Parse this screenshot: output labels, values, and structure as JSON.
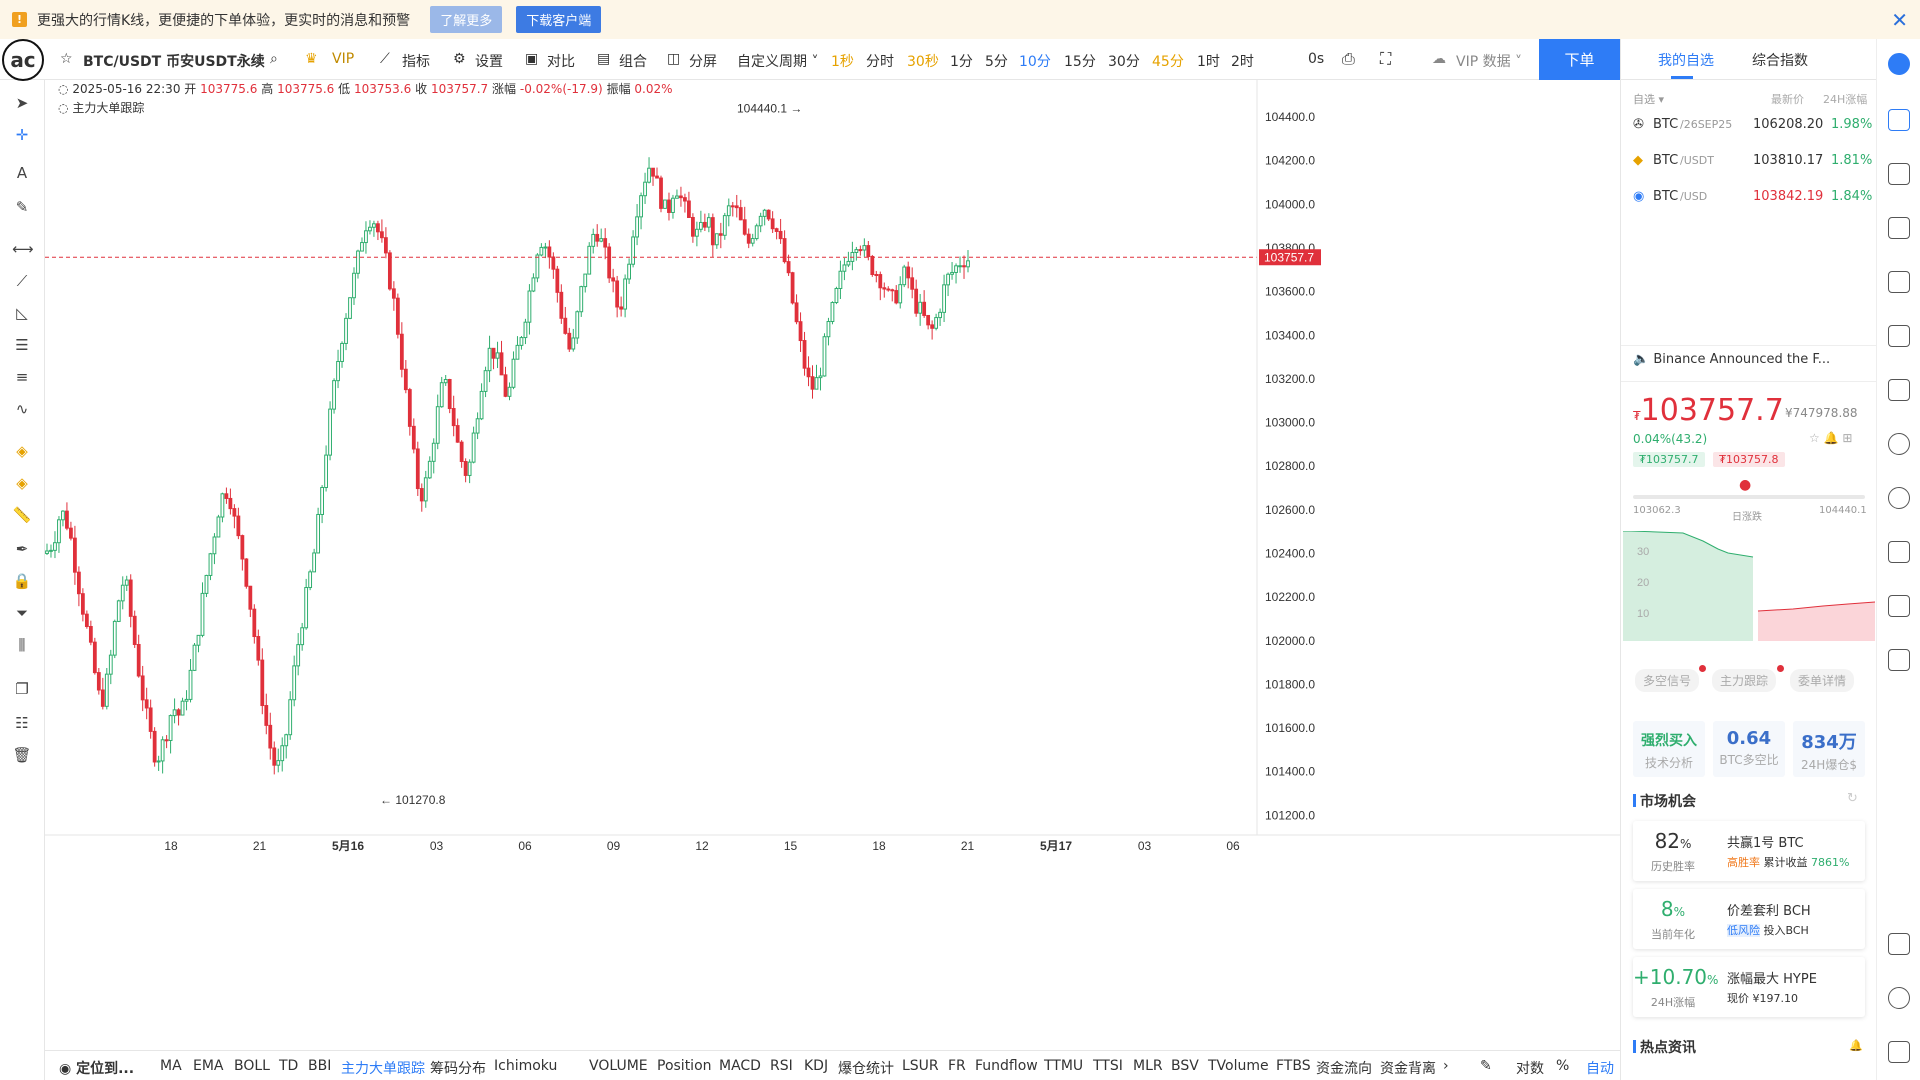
{
  "banner": {
    "message": "更强大的行情K线，更便捷的下单体验，更实时的消息和预警",
    "learn_more": "了解更多",
    "download": "下载客户端"
  },
  "toolbar": {
    "symbol": "BTC/USDT 币安USDT永续",
    "vip": "VIP",
    "indicators": "指标",
    "settings": "设置",
    "compare": "对比",
    "combine": "组合",
    "split": "分屏",
    "custom_period": "自定义周期",
    "periods": [
      "1秒",
      "分时",
      "30秒",
      "1分",
      "5分",
      "10分",
      "15分",
      "30分",
      "45分",
      "1时",
      "2时"
    ],
    "countdown": "0s",
    "vip_data": "VIP 数据",
    "order": "下单"
  },
  "ohlc": {
    "datetime": "2025-05-16 22:30",
    "open_label": "开",
    "open": "103775.6",
    "high_label": "高",
    "high": "103775.6",
    "low_label": "低",
    "low": "103753.6",
    "close_label": "收",
    "close": "103757.7",
    "change_label": "涨幅",
    "change": "-0.02%(-17.9)",
    "amp_label": "振幅",
    "amp": "0.02%",
    "tracker": "主力大单跟踪"
  },
  "chart_data": {
    "type": "candlestick",
    "y_ticks": [
      "104400.0",
      "104200.0",
      "104000.0",
      "103800.0",
      "103600.0",
      "103400.0",
      "103200.0",
      "103000.0",
      "102800.0",
      "102600.0",
      "102400.0",
      "102200.0",
      "102000.0",
      "101800.0",
      "101600.0",
      "101400.0",
      "101200.0"
    ],
    "ylim": [
      101110,
      104570
    ],
    "x_ticks": [
      "18",
      "21",
      "5月16",
      "03",
      "06",
      "09",
      "12",
      "15",
      "18",
      "21",
      "5月17",
      "03",
      "06"
    ],
    "current_price": "103757.7",
    "current_value": 103757.7,
    "high_marker": "104440.1 →",
    "high_value": 104440.1,
    "low_marker": "← 101270.8",
    "low_value": 101270.8,
    "up_color": "#2fae6e",
    "down_color": "#e0303b",
    "close_path": [
      102400,
      102450,
      102600,
      102520,
      102300,
      102100,
      101900,
      101700,
      101850,
      102150,
      102300,
      102050,
      101800,
      101600,
      101450,
      101550,
      101700,
      101650,
      101800,
      102000,
      102250,
      102450,
      102650,
      102700,
      102500,
      102350,
      102100,
      101800,
      101550,
      101400,
      101500,
      101800,
      102050,
      102250,
      102450,
      102800,
      103100,
      103350,
      103550,
      103700,
      103900,
      103950,
      103850,
      103700,
      103500,
      103200,
      102900,
      102650,
      102750,
      103000,
      103200,
      103050,
      102850,
      102750,
      103000,
      103250,
      103350,
      103250,
      103100,
      103300,
      103450,
      103650,
      103850,
      103800,
      103650,
      103450,
      103300,
      103550,
      103750,
      103900,
      103800,
      103650,
      103500,
      103700,
      103950,
      104100,
      104200,
      104050,
      103950,
      104100,
      104000,
      103900,
      103850,
      103950,
      103800,
      103900,
      104000,
      103950,
      103800,
      103900,
      104000,
      103950,
      103850,
      103700,
      103500,
      103300,
      103150,
      103200,
      103400,
      103550,
      103700,
      103800,
      103850,
      103750,
      103700,
      103650,
      103550,
      103600,
      103700,
      103550,
      103500,
      103400,
      103500,
      103650,
      103700,
      103750
    ]
  },
  "bottombar": {
    "locate": "定位到...",
    "items": [
      "MA",
      "EMA",
      "BOLL",
      "TD",
      "BBI",
      "主力大单跟踪",
      "筹码分布",
      "Ichimoku",
      "VOLUME",
      "Position",
      "MACD",
      "RSI",
      "KDJ",
      "爆仓统计",
      "LSUR",
      "FR",
      "Fundflow",
      "TTMU",
      "TTSI",
      "MLR",
      "BSV",
      "TVolume",
      "FTBS",
      "资金流向",
      "资金背离"
    ],
    "log": "对数",
    "percent": "%",
    "auto": "自动"
  },
  "panel": {
    "tab_watchlist": "我的自选",
    "tab_index": "综合指数",
    "col_selected": "自选",
    "col_latest": "最新价",
    "col_24h": "24H涨幅",
    "watchlist": [
      {
        "base": "BTC",
        "quote": "/26SEP25",
        "price": "106208.20",
        "change": "1.98%",
        "price_color": "#333"
      },
      {
        "base": "BTC",
        "quote": "/USDT",
        "price": "103810.17",
        "change": "1.81%",
        "price_color": "#333"
      },
      {
        "base": "BTC",
        "quote": "/USD",
        "price": "103842.19",
        "change": "1.84%",
        "price_color": "#e0303b"
      }
    ],
    "news": "Binance Announced the F...",
    "price": "103757.7",
    "price_prefix": "₮",
    "cny": "¥747978.88",
    "change": "0.04%(43.2)",
    "bid": "₮103757.7",
    "ask": "₮103757.8",
    "range_low": "103062.3",
    "range_label": "日涨跌",
    "range_high": "104440.1",
    "depth_ticks": [
      "30",
      "20",
      "10"
    ],
    "chips": [
      "多空信号",
      "主力跟踪",
      "委单详情"
    ],
    "cards": [
      {
        "value": "强烈买入",
        "label": "技术分析",
        "color": "#2fae6e"
      },
      {
        "value": "0.64",
        "label": "BTC多空比",
        "color": "#3b6fc9"
      },
      {
        "value": "834万",
        "label": "24H爆仓$",
        "color": "#3b6fc9"
      }
    ],
    "market_title": "市场机会",
    "opportunities": [
      {
        "big": "82",
        "unit": "%",
        "sub": "历史胜率",
        "title": "共赢1号 BTC",
        "tag": "高胜率",
        "desc": "累计收益",
        "desc_val": "7861%",
        "big_color": "#333"
      },
      {
        "big": "8",
        "unit": "%",
        "sub": "当前年化",
        "title": "价差套利 BCH",
        "tag": "低风险",
        "desc": "投入BCH",
        "desc_val": "",
        "big_color": "#2fae6e"
      },
      {
        "big": "+10.70",
        "unit": "%",
        "sub": "24H涨幅",
        "title": "涨幅最大 HYPE",
        "tag": "",
        "desc": "现价 ¥197.10",
        "desc_val": "",
        "big_color": "#2fae6e"
      }
    ],
    "hot_title": "热点资讯"
  }
}
